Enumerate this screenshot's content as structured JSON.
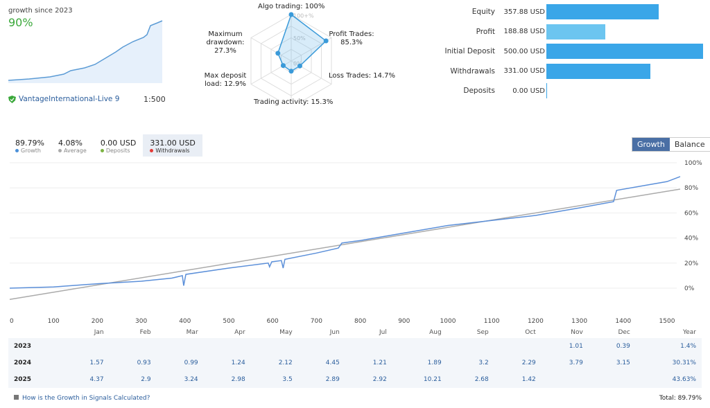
{
  "summary": {
    "growth_label": "growth since 2023",
    "growth_value": "90%",
    "broker": "VantageInternational-Live 9",
    "leverage": "1:500"
  },
  "radar": {
    "axes": [
      {
        "label": "Algo trading: 100%",
        "value": 100
      },
      {
        "label": "Profit Trades: 85.3%",
        "value": 85.3
      },
      {
        "label": "Loss Trades: 14.7%",
        "value": 14.7
      },
      {
        "label": "Trading activity: 15.3%",
        "value": 15.3
      },
      {
        "label": "Max deposit load: 12.9%",
        "value": 12.9
      },
      {
        "label": "Maximum drawdown: 27.3%",
        "value": 27.3
      }
    ],
    "ticks": [
      "100+%",
      "50%",
      "0%"
    ]
  },
  "balances": [
    {
      "label": "Equity",
      "value": "357.88 USD",
      "amount": 357.88,
      "color": "#3aa6e8"
    },
    {
      "label": "Profit",
      "value": "188.88 USD",
      "amount": 188.88,
      "color": "#6cc5f0"
    },
    {
      "label": "Initial Deposit",
      "value": "500.00 USD",
      "amount": 500,
      "color": "#3aa6e8"
    },
    {
      "label": "Withdrawals",
      "value": "331.00 USD",
      "amount": 331,
      "color": "#3aa6e8"
    },
    {
      "label": "Deposits",
      "value": "0.00 USD",
      "amount": 0,
      "color": "#3aa6e8"
    }
  ],
  "stats": [
    {
      "value": "89.79%",
      "label": "Growth",
      "color": "#4a90d9"
    },
    {
      "value": "4.08%",
      "label": "Average",
      "color": "#aaaaaa"
    },
    {
      "value": "0.00 USD",
      "label": "Deposits",
      "color": "#7cb342"
    },
    {
      "value": "331.00 USD",
      "label": "Withdrawals",
      "color": "#e53935"
    }
  ],
  "toggle": {
    "growth": "Growth",
    "balance": "Balance"
  },
  "chart_data": {
    "type": "line",
    "xlim": [
      0,
      1530
    ],
    "ylim": [
      -20,
      100
    ],
    "x_ticks": [
      0,
      100,
      200,
      300,
      400,
      500,
      600,
      700,
      800,
      900,
      1000,
      1100,
      1200,
      1300,
      1400,
      1500
    ],
    "y_ticks": [
      "100%",
      "80%",
      "60%",
      "40%",
      "20%",
      "0%"
    ],
    "y_tick_values": [
      100,
      80,
      60,
      40,
      20,
      0
    ],
    "series": [
      {
        "name": "Growth",
        "color": "#5b8fd9",
        "points": [
          [
            0,
            0
          ],
          [
            100,
            1
          ],
          [
            200,
            3.5
          ],
          [
            300,
            5.5
          ],
          [
            370,
            8
          ],
          [
            394,
            10
          ],
          [
            397,
            2
          ],
          [
            402,
            11
          ],
          [
            500,
            16
          ],
          [
            590,
            20
          ],
          [
            593,
            17
          ],
          [
            598,
            21
          ],
          [
            620,
            22
          ],
          [
            624,
            16
          ],
          [
            628,
            23
          ],
          [
            700,
            28
          ],
          [
            750,
            32
          ],
          [
            758,
            36
          ],
          [
            800,
            38
          ],
          [
            900,
            44
          ],
          [
            1000,
            50
          ],
          [
            1100,
            54
          ],
          [
            1200,
            58
          ],
          [
            1300,
            64
          ],
          [
            1378,
            69
          ],
          [
            1385,
            78
          ],
          [
            1450,
            82
          ],
          [
            1500,
            85
          ],
          [
            1530,
            89
          ]
        ]
      },
      {
        "name": "Average",
        "color": "#aaaaaa",
        "points": [
          [
            0,
            -9
          ],
          [
            1530,
            79
          ]
        ]
      }
    ]
  },
  "table": {
    "headers": [
      "",
      "Jan",
      "Feb",
      "Mar",
      "Apr",
      "May",
      "Jun",
      "Jul",
      "Aug",
      "Sep",
      "Oct",
      "Nov",
      "Dec",
      "Year"
    ],
    "rows": [
      [
        "2023",
        "",
        "",
        "",
        "",
        "",
        "",
        "",
        "",
        "",
        "",
        "1.01",
        "0.39",
        "1.4%"
      ],
      [
        "2024",
        "1.57",
        "0.93",
        "0.99",
        "1.24",
        "2.12",
        "4.45",
        "1.21",
        "1.89",
        "3.2",
        "2.29",
        "3.79",
        "3.15",
        "30.31%"
      ],
      [
        "2025",
        "4.37",
        "2.9",
        "3.24",
        "2.98",
        "3.5",
        "2.89",
        "2.92",
        "10.21",
        "2.68",
        "1.42",
        "",
        "",
        "43.63%"
      ]
    ]
  },
  "footer": {
    "help": "How is the Growth in Signals Calculated?",
    "total": "Total: 89.79%"
  }
}
